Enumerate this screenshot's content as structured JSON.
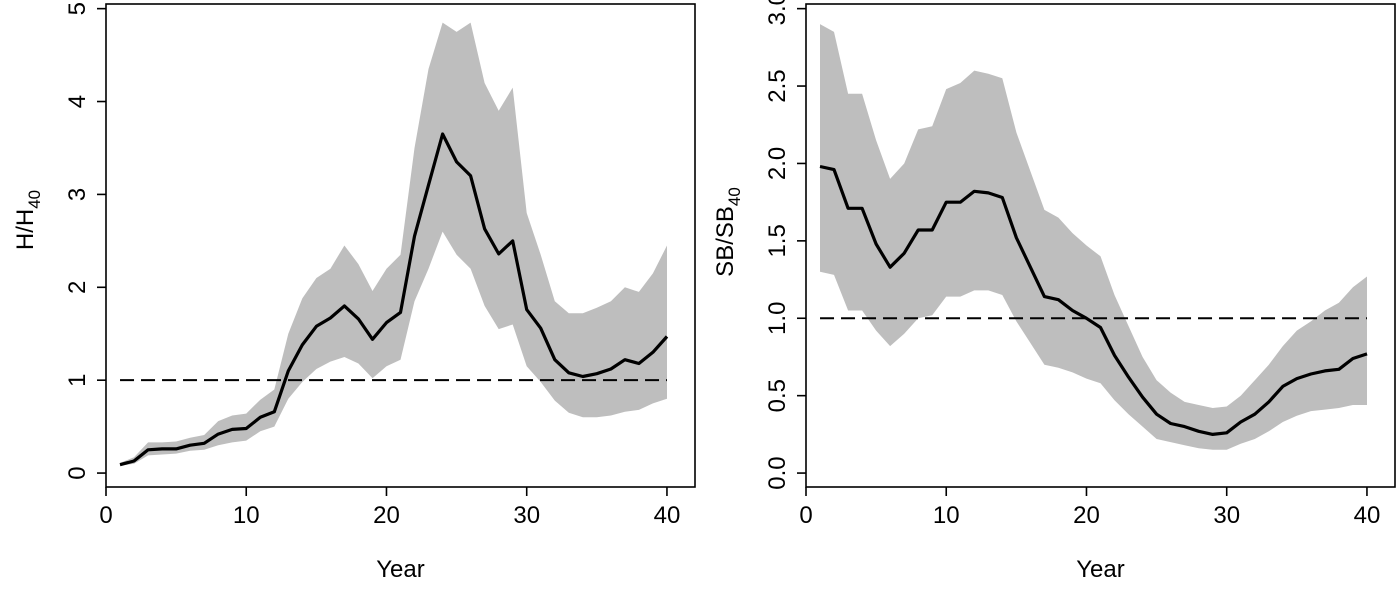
{
  "colors": {
    "band": "#bebebe",
    "line": "#000000",
    "reference": "#000000",
    "axis": "#000000"
  },
  "chart_data": [
    {
      "type": "line",
      "xlabel": "Year",
      "ylabel_main": "H/H",
      "ylabel_sub": "40",
      "xlim": [
        0,
        42
      ],
      "ylim": [
        -0.15,
        5.05
      ],
      "xticks": [
        0,
        10,
        20,
        30,
        40
      ],
      "yticks": [
        0,
        1,
        2,
        3,
        4,
        5
      ],
      "ytick_labels": [
        "0",
        "1",
        "2",
        "3",
        "4",
        "5"
      ],
      "reference_line": 1,
      "x": [
        1,
        2,
        3,
        4,
        5,
        6,
        7,
        8,
        9,
        10,
        11,
        12,
        13,
        14,
        15,
        16,
        17,
        18,
        19,
        20,
        21,
        22,
        23,
        24,
        25,
        26,
        27,
        28,
        29,
        30,
        31,
        32,
        33,
        34,
        35,
        36,
        37,
        38,
        39,
        40
      ],
      "series": [
        {
          "values": [
            0.09,
            0.13,
            0.25,
            0.26,
            0.26,
            0.3,
            0.32,
            0.42,
            0.47,
            0.48,
            0.6,
            0.66,
            1.1,
            1.38,
            1.58,
            1.67,
            1.8,
            1.66,
            1.44,
            1.62,
            1.73,
            2.55,
            3.1,
            3.65,
            3.35,
            3.2,
            2.63,
            2.36,
            2.5,
            1.76,
            1.56,
            1.22,
            1.08,
            1.04,
            1.07,
            1.12,
            1.22,
            1.18,
            1.3,
            1.47
          ],
          "lower": [
            0.08,
            0.1,
            0.19,
            0.2,
            0.21,
            0.24,
            0.25,
            0.3,
            0.33,
            0.35,
            0.45,
            0.5,
            0.8,
            0.98,
            1.12,
            1.2,
            1.25,
            1.18,
            1.02,
            1.15,
            1.22,
            1.85,
            2.2,
            2.6,
            2.35,
            2.2,
            1.8,
            1.55,
            1.6,
            1.15,
            0.98,
            0.78,
            0.65,
            0.6,
            0.6,
            0.62,
            0.66,
            0.68,
            0.75,
            0.8
          ],
          "upper": [
            0.11,
            0.17,
            0.33,
            0.33,
            0.34,
            0.38,
            0.41,
            0.56,
            0.62,
            0.64,
            0.79,
            0.9,
            1.5,
            1.88,
            2.1,
            2.2,
            2.45,
            2.25,
            1.96,
            2.2,
            2.35,
            3.5,
            4.35,
            4.85,
            4.75,
            4.85,
            4.2,
            3.9,
            4.15,
            2.8,
            2.35,
            1.85,
            1.72,
            1.72,
            1.78,
            1.85,
            2.0,
            1.95,
            2.15,
            2.45
          ]
        }
      ]
    },
    {
      "type": "line",
      "xlabel": "Year",
      "ylabel_main": "SB/SB",
      "ylabel_sub": "40",
      "xlim": [
        0,
        42
      ],
      "ylim": [
        -0.09,
        3.03
      ],
      "xticks": [
        0,
        10,
        20,
        30,
        40
      ],
      "yticks": [
        0,
        0.5,
        1,
        1.5,
        2,
        2.5,
        3
      ],
      "ytick_labels": [
        "0.0",
        "0.5",
        "1.0",
        "1.5",
        "2.0",
        "2.5",
        "3.0"
      ],
      "reference_line": 1,
      "x": [
        1,
        2,
        3,
        4,
        5,
        6,
        7,
        8,
        9,
        10,
        11,
        12,
        13,
        14,
        15,
        16,
        17,
        18,
        19,
        20,
        21,
        22,
        23,
        24,
        25,
        26,
        27,
        28,
        29,
        30,
        31,
        32,
        33,
        34,
        35,
        36,
        37,
        38,
        39,
        40
      ],
      "series": [
        {
          "values": [
            1.98,
            1.96,
            1.71,
            1.71,
            1.48,
            1.33,
            1.42,
            1.57,
            1.57,
            1.75,
            1.75,
            1.82,
            1.81,
            1.78,
            1.52,
            1.33,
            1.14,
            1.12,
            1.05,
            1.0,
            0.94,
            0.76,
            0.62,
            0.49,
            0.38,
            0.32,
            0.3,
            0.27,
            0.25,
            0.26,
            0.33,
            0.38,
            0.46,
            0.56,
            0.61,
            0.64,
            0.66,
            0.67,
            0.74,
            0.77
          ],
          "lower": [
            1.3,
            1.28,
            1.05,
            1.05,
            0.92,
            0.82,
            0.9,
            1.0,
            1.02,
            1.14,
            1.14,
            1.18,
            1.18,
            1.15,
            0.98,
            0.84,
            0.7,
            0.68,
            0.65,
            0.61,
            0.58,
            0.47,
            0.38,
            0.3,
            0.22,
            0.2,
            0.18,
            0.16,
            0.15,
            0.15,
            0.19,
            0.22,
            0.27,
            0.33,
            0.37,
            0.4,
            0.41,
            0.42,
            0.44,
            0.44
          ],
          "upper": [
            2.9,
            2.85,
            2.45,
            2.45,
            2.15,
            1.9,
            2.0,
            2.22,
            2.24,
            2.48,
            2.52,
            2.6,
            2.58,
            2.55,
            2.2,
            1.95,
            1.7,
            1.65,
            1.55,
            1.47,
            1.4,
            1.15,
            0.95,
            0.75,
            0.6,
            0.52,
            0.46,
            0.44,
            0.42,
            0.43,
            0.5,
            0.6,
            0.7,
            0.82,
            0.92,
            0.98,
            1.05,
            1.1,
            1.2,
            1.27
          ]
        }
      ]
    }
  ]
}
